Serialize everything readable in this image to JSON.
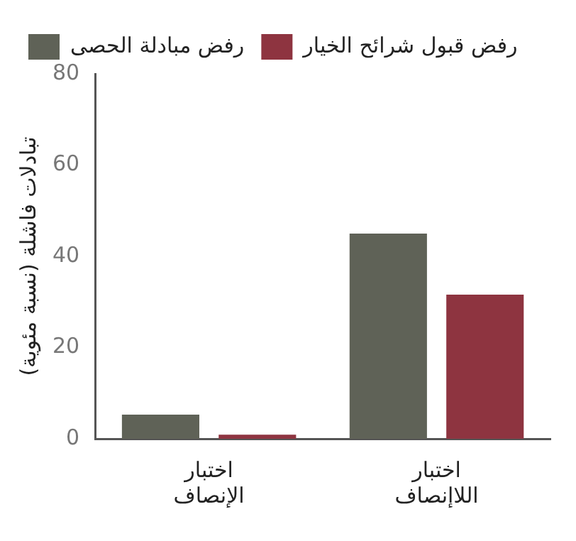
{
  "chart_data": {
    "type": "bar",
    "ylabel": "تبادلات فاشلة (نسبة مئوية)",
    "categories": [
      "اختبار الإنصاف",
      "اختبار اللاإنصاف"
    ],
    "series": [
      {
        "name": "رفض مبادلة الحصى",
        "color": "#5f6257",
        "values": [
          5.3,
          45
        ]
      },
      {
        "name": "رفض قبول شرائح الخيار",
        "color": "#8e3440",
        "values": [
          0.9,
          31.6
        ]
      }
    ],
    "ylim": [
      0,
      80
    ],
    "yticks": [
      0,
      20,
      40,
      60,
      80
    ],
    "grid": false,
    "legend": "top left"
  }
}
